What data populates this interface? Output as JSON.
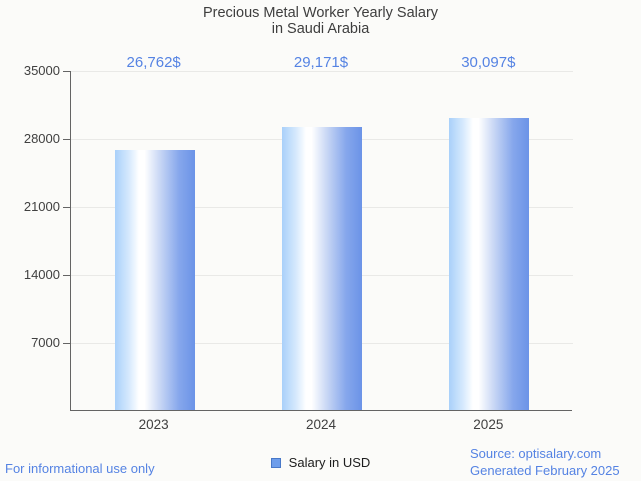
{
  "chart_data": {
    "type": "bar",
    "title": "Precious Metal Worker Yearly Salary in Saudi Arabia",
    "title_lines": [
      "Precious Metal Worker Yearly Salary",
      "in Saudi Arabia"
    ],
    "categories": [
      "2023",
      "2024",
      "2025"
    ],
    "series": [
      {
        "name": "Salary in USD",
        "values": [
          26762,
          29171,
          30097
        ]
      }
    ],
    "value_labels": [
      "26,762$",
      "29,171$",
      "30,097$"
    ],
    "xlabel": "",
    "ylabel": "",
    "ylim": [
      0,
      35000
    ],
    "yticks": [
      35000,
      28000,
      21000,
      14000,
      7000
    ],
    "grid": true,
    "legend_position": "bottom-center"
  },
  "legend": {
    "label": "Salary in USD"
  },
  "footer": {
    "disclaimer": "For informational use only",
    "source": "Source: optisalary.com",
    "generated": "Generated February 2025"
  },
  "colors": {
    "background": "#fbfbf9",
    "title_text": "#3e3e3e",
    "axis_text": "#404040",
    "value_label_text": "#5583e3",
    "footer_text": "#5583e3",
    "axis_line": "#646464",
    "gridline": "#e9e9e7",
    "bar_gradient_left": "#a9d0fa",
    "bar_gradient_mid": "#ffffff",
    "bar_gradient_right": "#6b93e7",
    "legend_swatch_fill": "#6d9deb",
    "legend_swatch_border": "#4878c8"
  }
}
